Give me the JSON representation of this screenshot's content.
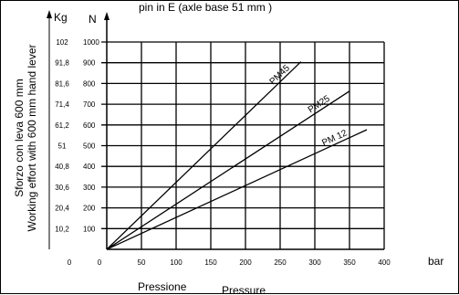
{
  "chart_data": {
    "type": "line",
    "title": "pin in E (axle base 51 mm )",
    "xlabel": "Pressione",
    "xlabel2": "Pressure",
    "xunit": "bar",
    "ylabel_line1": "Sforzo con leva 600 mm",
    "ylabel_line2": "Working effort with 600 mm hand lever",
    "yunit_left": "Kg",
    "yunit_right": "N",
    "xlim": [
      0,
      400
    ],
    "ylim": [
      0,
      1000
    ],
    "grid": true,
    "x_ticks": [
      "0",
      "0",
      "50",
      "100",
      "150",
      "200",
      "250",
      "300",
      "350",
      "400"
    ],
    "y_ticks_N": [
      "100",
      "200",
      "300",
      "400",
      "500",
      "600",
      "700",
      "800",
      "900",
      "1000"
    ],
    "y_ticks_Kg": [
      "10,2",
      "20,4",
      "30,6",
      "40,8",
      "51",
      "61,2",
      "71,4",
      "81,6",
      "91,8",
      "102"
    ],
    "series": [
      {
        "name": "PM45",
        "points": [
          [
            0,
            0
          ],
          [
            280,
            905
          ]
        ]
      },
      {
        "name": "PM25",
        "points": [
          [
            0,
            0
          ],
          [
            350,
            763
          ]
        ]
      },
      {
        "name": "PM 12",
        "points": [
          [
            0,
            0
          ],
          [
            375,
            577
          ]
        ]
      }
    ]
  }
}
